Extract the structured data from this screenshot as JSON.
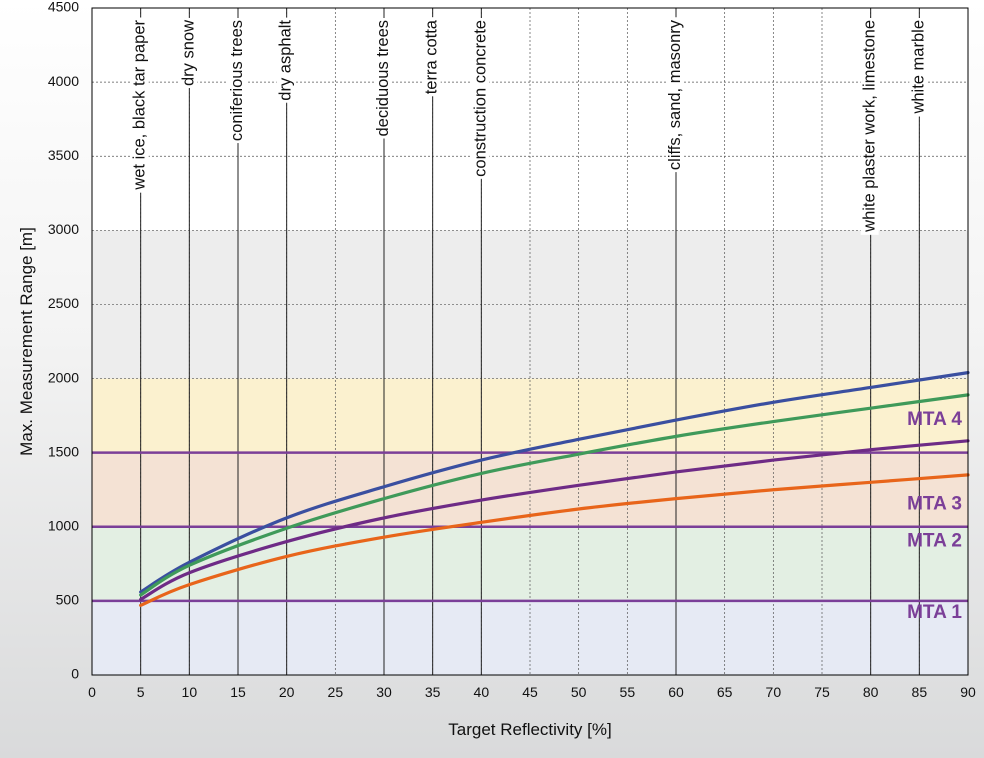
{
  "chart_data": {
    "type": "line",
    "title": "",
    "xlabel": "Target Reflectivity [%]",
    "ylabel": "Max. Measurement Range [m]",
    "xlim": [
      0,
      90
    ],
    "ylim": [
      0,
      4500
    ],
    "x_ticks": [
      "0",
      "5",
      "10",
      "15",
      "20",
      "25",
      "30",
      "35",
      "40",
      "45",
      "50",
      "55",
      "60",
      "65",
      "70",
      "75",
      "80",
      "85",
      "90"
    ],
    "y_ticks": [
      "0",
      "500",
      "1000",
      "1500",
      "2000",
      "2500",
      "3000",
      "3500",
      "4000",
      "4500"
    ],
    "grid": true,
    "bands": [
      {
        "from": 0,
        "to": 500,
        "color": "#e6eaf4"
      },
      {
        "from": 500,
        "to": 1000,
        "color": "#e3efe3"
      },
      {
        "from": 1000,
        "to": 1500,
        "color": "#f4e2d4"
      },
      {
        "from": 1500,
        "to": 2000,
        "color": "#fbf1cf"
      },
      {
        "from": 2000,
        "to": 3000,
        "color": "#ededed"
      },
      {
        "from": 3000,
        "to": 4500,
        "color": "#ffffff"
      }
    ],
    "mta_zones": [
      {
        "label": "MTA 1",
        "boundary": 500,
        "label_y": 420
      },
      {
        "label": "MTA 2",
        "boundary": 1000,
        "label_y": 900
      },
      {
        "label": "MTA 3",
        "boundary": 1500,
        "label_y": 1150
      },
      {
        "label": "MTA 4",
        "label_y": 1720
      }
    ],
    "mta_color": "#7b3f98",
    "materials": [
      {
        "x": 5,
        "label": "wet ice, black tar paper"
      },
      {
        "x": 10,
        "label": "dry snow"
      },
      {
        "x": 15,
        "label": "coniferious trees"
      },
      {
        "x": 20,
        "label": "dry asphalt"
      },
      {
        "x": 30,
        "label": "deciduous trees"
      },
      {
        "x": 35,
        "label": "terra cotta"
      },
      {
        "x": 40,
        "label": "construction concrete"
      },
      {
        "x": 60,
        "label": "cliffs, sand, masonry"
      },
      {
        "x": 80,
        "label": "white plaster work, limestone"
      },
      {
        "x": 85,
        "label": "white marble"
      }
    ],
    "series": [
      {
        "color": "#3a4fa0",
        "x": [
          5,
          10,
          20,
          30,
          40,
          50,
          60,
          70,
          80,
          90
        ],
        "values": [
          560,
          760,
          1060,
          1270,
          1450,
          1590,
          1720,
          1840,
          1940,
          2040
        ]
      },
      {
        "color": "#3f9a5a",
        "x": [
          5,
          10,
          20,
          30,
          40,
          50,
          60,
          70,
          80,
          90
        ],
        "values": [
          540,
          740,
          990,
          1190,
          1360,
          1490,
          1610,
          1710,
          1800,
          1890
        ]
      },
      {
        "color": "#6e2b86",
        "x": [
          5,
          10,
          20,
          30,
          40,
          50,
          60,
          70,
          80,
          90
        ],
        "values": [
          510,
          690,
          900,
          1060,
          1180,
          1280,
          1370,
          1450,
          1520,
          1580
        ]
      },
      {
        "color": "#e8651a",
        "x": [
          5,
          10,
          20,
          30,
          40,
          50,
          60,
          70,
          80,
          90
        ],
        "values": [
          470,
          610,
          800,
          930,
          1030,
          1120,
          1190,
          1250,
          1300,
          1350
        ]
      }
    ]
  }
}
